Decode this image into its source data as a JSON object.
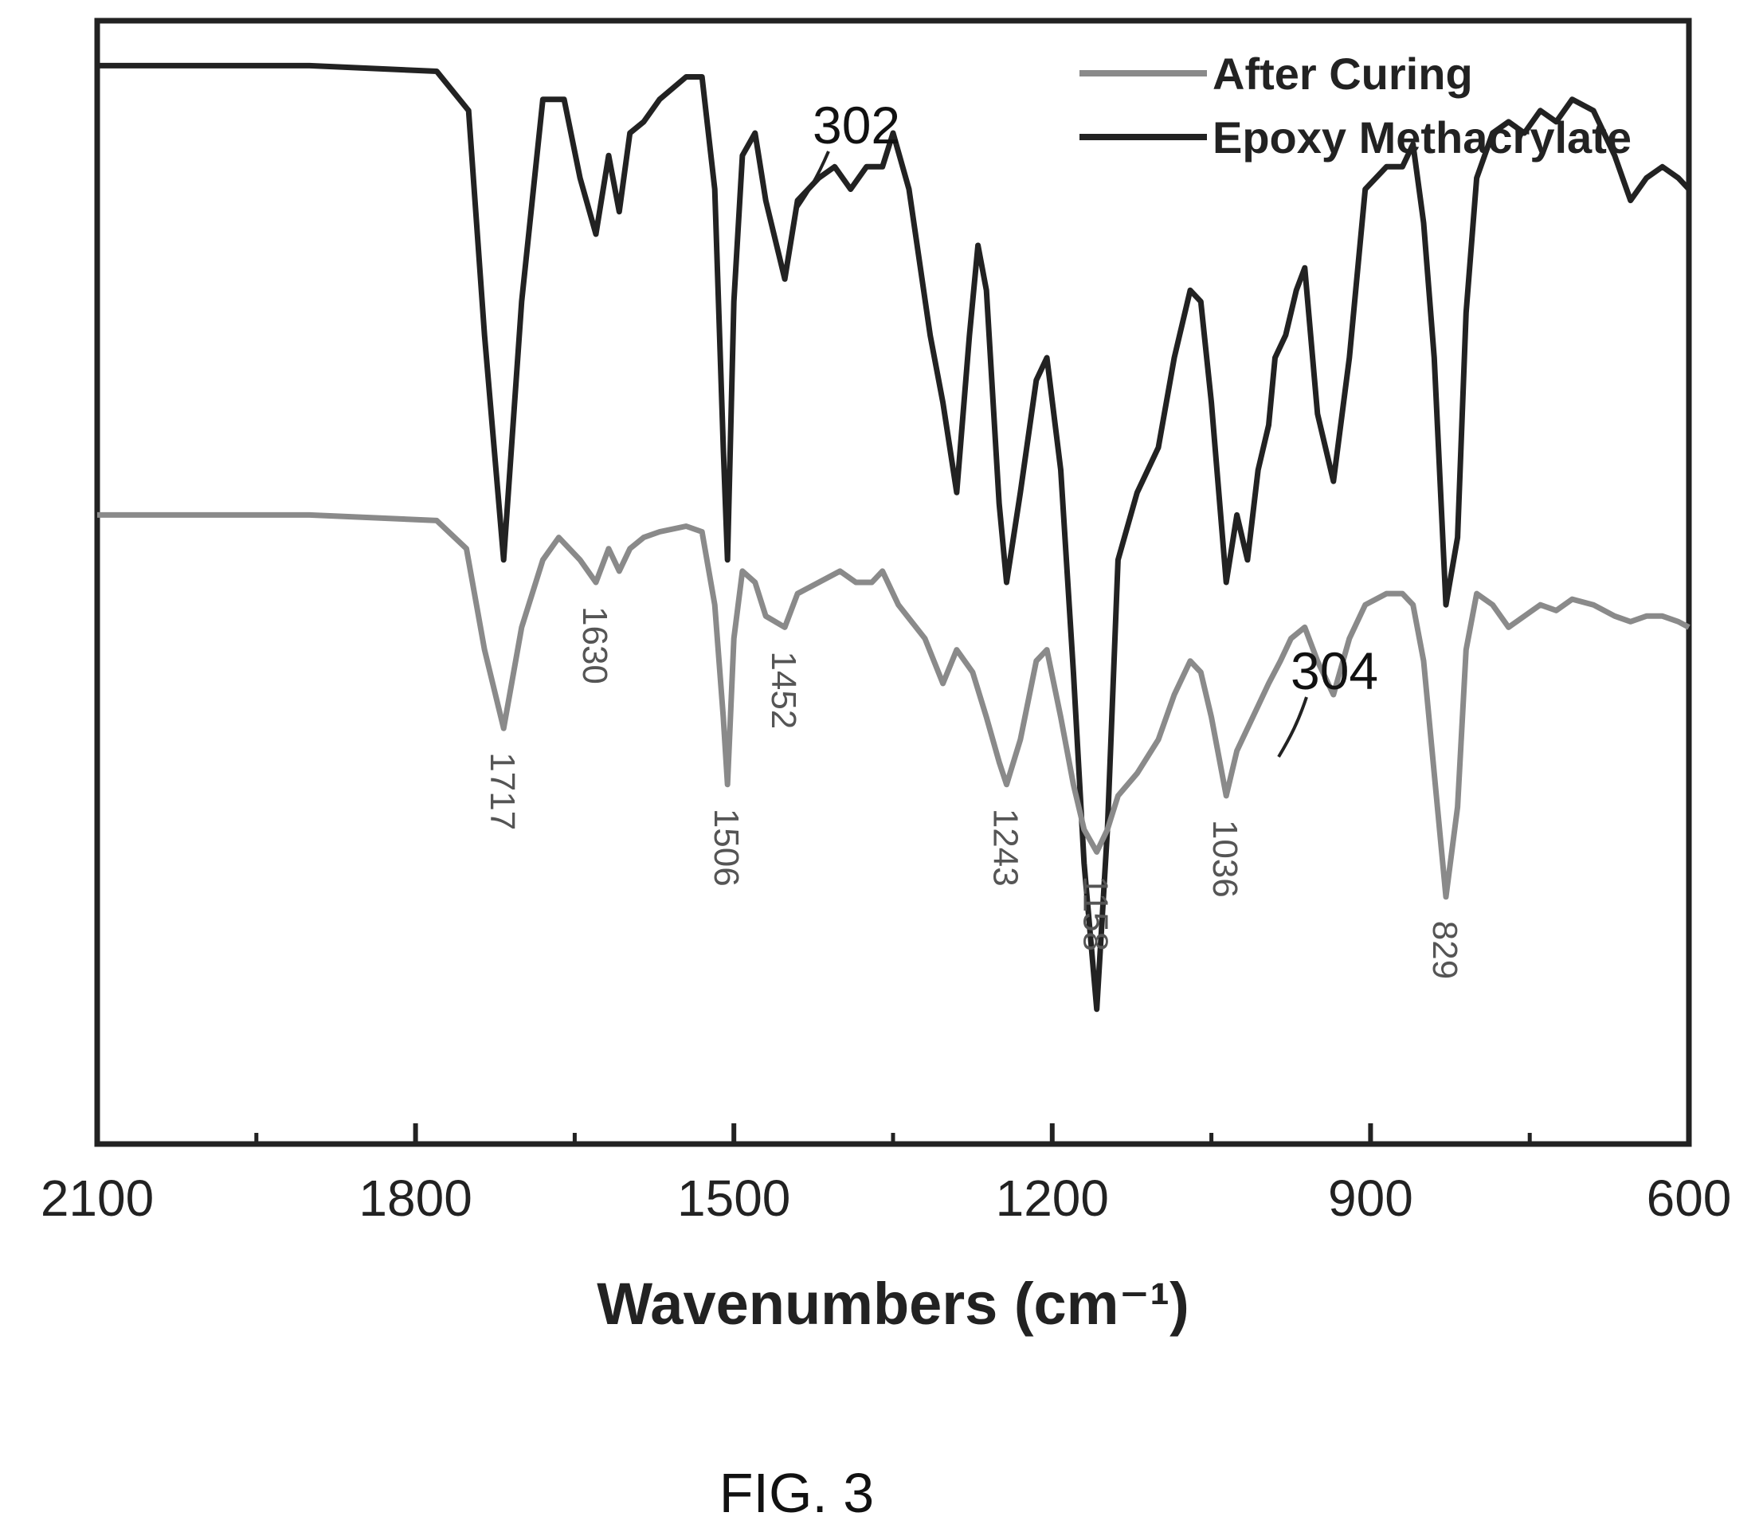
{
  "chart_data": {
    "type": "line",
    "title": "",
    "xlabel": "Wavenumbers (cm⁻¹)",
    "ylabel": "",
    "xlim": [
      2100,
      600
    ],
    "x_reversed": true,
    "x_ticks": [
      "2100",
      "1800",
      "1500",
      "1200",
      "900",
      "600"
    ],
    "grid": false,
    "y_ticks_visible": false,
    "legend_position": "top-right",
    "legend": [
      {
        "label": "After Curing",
        "color": "#8a8a8a"
      },
      {
        "label": "Epoxy Methacrylate",
        "color": "#222222"
      }
    ],
    "series": [
      {
        "name": "Epoxy Methacrylate",
        "ref_label": "302",
        "color": "#222222",
        "points": [
          [
            2100,
            0.96
          ],
          [
            1900,
            0.96
          ],
          [
            1780,
            0.955
          ],
          [
            1750,
            0.92
          ],
          [
            1735,
            0.72
          ],
          [
            1717,
            0.52
          ],
          [
            1700,
            0.75
          ],
          [
            1680,
            0.93
          ],
          [
            1660,
            0.93
          ],
          [
            1645,
            0.86
          ],
          [
            1630,
            0.81
          ],
          [
            1618,
            0.88
          ],
          [
            1608,
            0.83
          ],
          [
            1598,
            0.9
          ],
          [
            1585,
            0.91
          ],
          [
            1570,
            0.93
          ],
          [
            1545,
            0.95
          ],
          [
            1530,
            0.95
          ],
          [
            1518,
            0.85
          ],
          [
            1510,
            0.62
          ],
          [
            1506,
            0.52
          ],
          [
            1500,
            0.75
          ],
          [
            1492,
            0.88
          ],
          [
            1480,
            0.9
          ],
          [
            1470,
            0.84
          ],
          [
            1452,
            0.77
          ],
          [
            1440,
            0.84
          ],
          [
            1420,
            0.86
          ],
          [
            1405,
            0.87
          ],
          [
            1390,
            0.85
          ],
          [
            1375,
            0.87
          ],
          [
            1360,
            0.87
          ],
          [
            1350,
            0.9
          ],
          [
            1335,
            0.85
          ],
          [
            1315,
            0.72
          ],
          [
            1303,
            0.66
          ],
          [
            1290,
            0.58
          ],
          [
            1278,
            0.72
          ],
          [
            1270,
            0.8
          ],
          [
            1262,
            0.76
          ],
          [
            1250,
            0.57
          ],
          [
            1243,
            0.5
          ],
          [
            1230,
            0.58
          ],
          [
            1215,
            0.68
          ],
          [
            1205,
            0.7
          ],
          [
            1192,
            0.6
          ],
          [
            1180,
            0.42
          ],
          [
            1170,
            0.25
          ],
          [
            1158,
            0.12
          ],
          [
            1148,
            0.28
          ],
          [
            1138,
            0.52
          ],
          [
            1120,
            0.58
          ],
          [
            1100,
            0.62
          ],
          [
            1085,
            0.7
          ],
          [
            1070,
            0.76
          ],
          [
            1060,
            0.75
          ],
          [
            1050,
            0.66
          ],
          [
            1036,
            0.5
          ],
          [
            1026,
            0.56
          ],
          [
            1016,
            0.52
          ],
          [
            1006,
            0.6
          ],
          [
            996,
            0.64
          ],
          [
            990,
            0.7
          ],
          [
            980,
            0.72
          ],
          [
            970,
            0.76
          ],
          [
            962,
            0.78
          ],
          [
            950,
            0.65
          ],
          [
            935,
            0.59
          ],
          [
            920,
            0.7
          ],
          [
            905,
            0.85
          ],
          [
            885,
            0.87
          ],
          [
            870,
            0.87
          ],
          [
            860,
            0.89
          ],
          [
            850,
            0.82
          ],
          [
            840,
            0.7
          ],
          [
            829,
            0.48
          ],
          [
            818,
            0.54
          ],
          [
            810,
            0.74
          ],
          [
            800,
            0.86
          ],
          [
            785,
            0.9
          ],
          [
            770,
            0.91
          ],
          [
            755,
            0.9
          ],
          [
            740,
            0.92
          ],
          [
            725,
            0.91
          ],
          [
            710,
            0.93
          ],
          [
            690,
            0.92
          ],
          [
            670,
            0.88
          ],
          [
            655,
            0.84
          ],
          [
            640,
            0.86
          ],
          [
            625,
            0.87
          ],
          [
            610,
            0.86
          ],
          [
            600,
            0.85
          ]
        ]
      },
      {
        "name": "After Curing",
        "ref_label": "304",
        "color": "#8a8a8a",
        "points": [
          [
            2100,
            0.56
          ],
          [
            1900,
            0.56
          ],
          [
            1780,
            0.555
          ],
          [
            1752,
            0.53
          ],
          [
            1735,
            0.44
          ],
          [
            1717,
            0.37
          ],
          [
            1700,
            0.46
          ],
          [
            1680,
            0.52
          ],
          [
            1665,
            0.54
          ],
          [
            1645,
            0.52
          ],
          [
            1630,
            0.5
          ],
          [
            1618,
            0.53
          ],
          [
            1608,
            0.51
          ],
          [
            1598,
            0.53
          ],
          [
            1585,
            0.54
          ],
          [
            1570,
            0.545
          ],
          [
            1545,
            0.55
          ],
          [
            1530,
            0.545
          ],
          [
            1518,
            0.48
          ],
          [
            1510,
            0.38
          ],
          [
            1506,
            0.32
          ],
          [
            1500,
            0.45
          ],
          [
            1492,
            0.51
          ],
          [
            1480,
            0.5
          ],
          [
            1470,
            0.47
          ],
          [
            1452,
            0.46
          ],
          [
            1440,
            0.49
          ],
          [
            1420,
            0.5
          ],
          [
            1400,
            0.51
          ],
          [
            1385,
            0.5
          ],
          [
            1370,
            0.5
          ],
          [
            1360,
            0.51
          ],
          [
            1345,
            0.48
          ],
          [
            1320,
            0.45
          ],
          [
            1303,
            0.41
          ],
          [
            1290,
            0.44
          ],
          [
            1275,
            0.42
          ],
          [
            1262,
            0.38
          ],
          [
            1250,
            0.34
          ],
          [
            1243,
            0.32
          ],
          [
            1230,
            0.36
          ],
          [
            1215,
            0.43
          ],
          [
            1205,
            0.44
          ],
          [
            1192,
            0.38
          ],
          [
            1180,
            0.32
          ],
          [
            1170,
            0.28
          ],
          [
            1158,
            0.26
          ],
          [
            1148,
            0.28
          ],
          [
            1138,
            0.31
          ],
          [
            1120,
            0.33
          ],
          [
            1100,
            0.36
          ],
          [
            1085,
            0.4
          ],
          [
            1070,
            0.43
          ],
          [
            1060,
            0.42
          ],
          [
            1050,
            0.38
          ],
          [
            1036,
            0.31
          ],
          [
            1026,
            0.35
          ],
          [
            1016,
            0.37
          ],
          [
            1006,
            0.39
          ],
          [
            996,
            0.41
          ],
          [
            985,
            0.43
          ],
          [
            975,
            0.45
          ],
          [
            962,
            0.46
          ],
          [
            950,
            0.43
          ],
          [
            935,
            0.4
          ],
          [
            920,
            0.45
          ],
          [
            905,
            0.48
          ],
          [
            885,
            0.49
          ],
          [
            870,
            0.49
          ],
          [
            860,
            0.48
          ],
          [
            850,
            0.43
          ],
          [
            840,
            0.33
          ],
          [
            829,
            0.22
          ],
          [
            818,
            0.3
          ],
          [
            810,
            0.44
          ],
          [
            800,
            0.49
          ],
          [
            785,
            0.48
          ],
          [
            770,
            0.46
          ],
          [
            755,
            0.47
          ],
          [
            740,
            0.48
          ],
          [
            725,
            0.475
          ],
          [
            710,
            0.485
          ],
          [
            690,
            0.48
          ],
          [
            670,
            0.47
          ],
          [
            655,
            0.465
          ],
          [
            640,
            0.47
          ],
          [
            625,
            0.47
          ],
          [
            610,
            0.465
          ],
          [
            600,
            0.46
          ]
        ]
      }
    ],
    "annotations": {
      "peak_labels": [
        {
          "text": "1717",
          "x": 1717
        },
        {
          "text": "1630",
          "x": 1630
        },
        {
          "text": "1506",
          "x": 1506
        },
        {
          "text": "1452",
          "x": 1452
        },
        {
          "text": "1243",
          "x": 1243
        },
        {
          "text": "1158",
          "x": 1158
        },
        {
          "text": "1036",
          "x": 1036
        },
        {
          "text": "829",
          "x": 829
        }
      ]
    }
  },
  "figure_caption": "FIG. 3"
}
